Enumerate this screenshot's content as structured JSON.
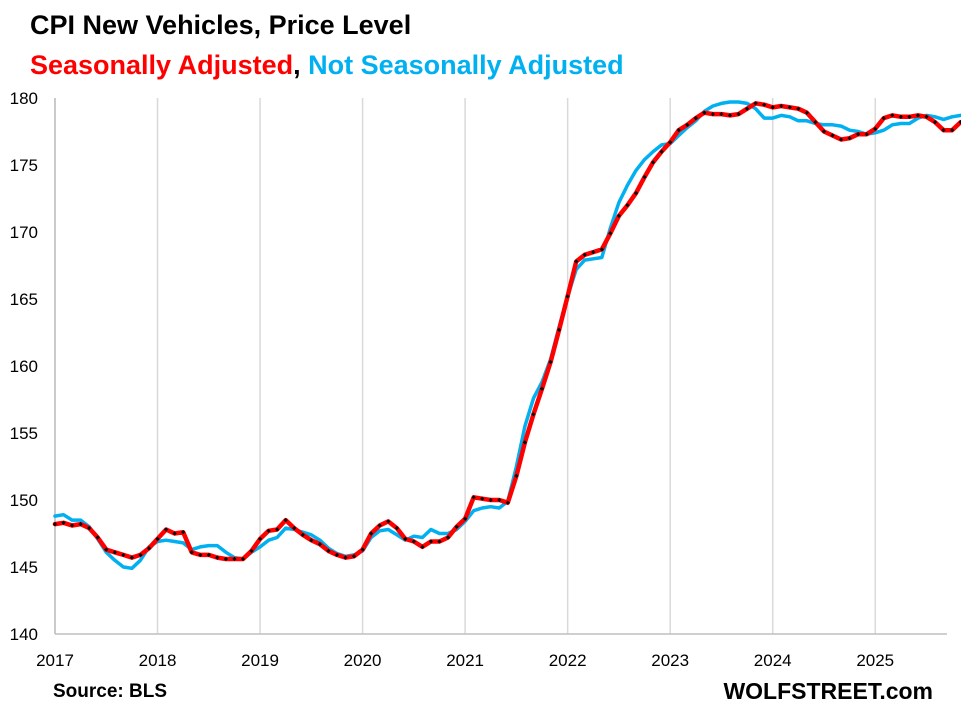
{
  "title": "CPI New Vehicles, Price Level",
  "subtitle": {
    "sa": "Seasonally Adjusted",
    "sep": ", ",
    "nsa": "Not Seasonally  Adjusted"
  },
  "source": "Source: BLS",
  "brand": "WOLFSTREET.com",
  "colors": {
    "sa": "#ff0000",
    "nsa": "#00b0f0",
    "markers": "#000000",
    "grid": "#d9d9d9"
  },
  "chart_data": {
    "type": "line",
    "xlabel": "",
    "ylabel": "",
    "ylim": [
      140,
      180
    ],
    "xlim": [
      2017,
      2025.7
    ],
    "y_ticks": [
      "140",
      "145",
      "150",
      "155",
      "160",
      "165",
      "170",
      "175",
      "180"
    ],
    "x_ticks": [
      "2017",
      "2018",
      "2019",
      "2020",
      "2021",
      "2022",
      "2023",
      "2024",
      "2025"
    ],
    "grid": "vertical at years",
    "x_start": "2017-01",
    "x_step": "monthly",
    "series": [
      {
        "name": "Seasonally Adjusted",
        "markers": true,
        "values": [
          148.2,
          148.3,
          148.1,
          148.2,
          147.9,
          147.2,
          146.3,
          146.1,
          145.9,
          145.7,
          145.9,
          146.4,
          147.1,
          147.8,
          147.5,
          147.6,
          146.1,
          145.9,
          145.9,
          145.7,
          145.6,
          145.6,
          145.6,
          146.2,
          147.1,
          147.7,
          147.8,
          148.5,
          147.9,
          147.4,
          147.0,
          146.7,
          146.2,
          145.9,
          145.7,
          145.8,
          146.3,
          147.5,
          148.1,
          148.4,
          147.9,
          147.1,
          146.9,
          146.5,
          146.9,
          146.9,
          147.2,
          148.0,
          148.6,
          150.2,
          150.1,
          150.0,
          150.0,
          149.8,
          151.8,
          154.3,
          156.4,
          158.3,
          160.3,
          162.7,
          165.2,
          167.8,
          168.3,
          168.5,
          168.7,
          169.9,
          171.2,
          172.0,
          172.9,
          174.1,
          175.2,
          176.0,
          176.7,
          177.6,
          178.0,
          178.5,
          178.9,
          178.8,
          178.8,
          178.7,
          178.8,
          179.2,
          179.6,
          179.5,
          179.3,
          179.4,
          179.3,
          179.2,
          178.9,
          178.2,
          177.5,
          177.2,
          176.9,
          177.0,
          177.3,
          177.3,
          177.7,
          178.5,
          178.7,
          178.6,
          178.6,
          178.7,
          178.6,
          178.2,
          177.6,
          177.6,
          178.2
        ]
      },
      {
        "name": "Not Seasonally  Adjusted",
        "markers": false,
        "values": [
          148.8,
          148.9,
          148.5,
          148.5,
          148.0,
          147.1,
          146.1,
          145.5,
          145.0,
          144.9,
          145.5,
          146.5,
          146.9,
          147.0,
          146.9,
          146.8,
          146.3,
          146.5,
          146.6,
          146.6,
          146.1,
          145.7,
          145.6,
          146.1,
          146.5,
          147.0,
          147.2,
          147.9,
          147.8,
          147.6,
          147.4,
          147.0,
          146.4,
          146.0,
          145.8,
          145.9,
          146.2,
          147.2,
          147.7,
          147.8,
          147.4,
          147.0,
          147.3,
          147.2,
          147.8,
          147.5,
          147.5,
          147.8,
          148.4,
          149.2,
          149.4,
          149.5,
          149.4,
          149.9,
          152.5,
          155.5,
          157.6,
          158.8,
          160.5,
          162.9,
          165.2,
          167.2,
          167.9,
          168.0,
          168.1,
          170.3,
          172.2,
          173.5,
          174.6,
          175.4,
          176.0,
          176.5,
          176.6,
          177.2,
          177.8,
          178.3,
          179.0,
          179.4,
          179.6,
          179.7,
          179.7,
          179.6,
          179.2,
          178.5,
          178.5,
          178.7,
          178.6,
          178.3,
          178.3,
          178.1,
          178.0,
          178.0,
          177.9,
          177.6,
          177.5,
          177.3,
          177.4,
          177.6,
          178.0,
          178.1,
          178.1,
          178.5,
          178.7,
          178.6,
          178.4,
          178.6,
          178.7
        ]
      }
    ]
  }
}
